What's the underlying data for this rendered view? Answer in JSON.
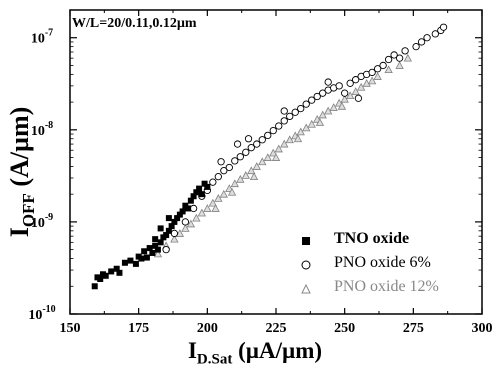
{
  "chart_data": {
    "type": "scatter",
    "title": "",
    "annotation": "W/L=20/0.11,0.12µm",
    "ylabel": {
      "main": "I",
      "sub": "OFF",
      "unit": " (A/µm)"
    },
    "xlabel": {
      "main": "I",
      "sub": "D.Sat",
      "unit": " (µA/µm)"
    },
    "xlim": [
      150,
      300
    ],
    "ylim": [
      1e-10,
      2e-07
    ],
    "yscale": "log",
    "xticks": [
      "150",
      "175",
      "200",
      "225",
      "250",
      "275",
      "300"
    ],
    "yticks": [
      {
        "base": "10",
        "exp": "-10",
        "value": 1e-10
      },
      {
        "base": "10",
        "exp": "-9",
        "value": 1e-09
      },
      {
        "base": "10",
        "exp": "-8",
        "value": 1e-08
      },
      {
        "base": "10",
        "exp": "-7",
        "value": 1e-07
      }
    ],
    "grid": false,
    "legend_position": "bottom-right",
    "series": [
      {
        "name": "TNO oxide",
        "marker": "filled-square",
        "color": "#000000",
        "points": [
          [
            159,
            2e-10
          ],
          [
            160,
            2.5e-10
          ],
          [
            161,
            2.4e-10
          ],
          [
            162,
            2.7e-10
          ],
          [
            163,
            2.6e-10
          ],
          [
            165,
            2.9e-10
          ],
          [
            167,
            3.1e-10
          ],
          [
            168,
            2.8e-10
          ],
          [
            170,
            3.6e-10
          ],
          [
            172,
            3.8e-10
          ],
          [
            174,
            3.5e-10
          ],
          [
            175,
            4.2e-10
          ],
          [
            176,
            4e-10
          ],
          [
            177,
            4.8e-10
          ],
          [
            178,
            4.1e-10
          ],
          [
            179,
            5.2e-10
          ],
          [
            180,
            4.6e-10
          ],
          [
            181,
            5.5e-10
          ],
          [
            182,
            5e-10
          ],
          [
            183,
            6e-10
          ],
          [
            184,
            6.8e-10
          ],
          [
            185,
            7.2e-10
          ],
          [
            186,
            8e-10
          ],
          [
            187,
            9e-10
          ],
          [
            188,
            1e-09
          ],
          [
            189,
            1.1e-09
          ],
          [
            190,
            1.2e-09
          ],
          [
            191,
            1.3e-09
          ],
          [
            192,
            1.5e-09
          ],
          [
            193,
            1.4e-09
          ],
          [
            194,
            1.7e-09
          ],
          [
            195,
            1.9e-09
          ],
          [
            196,
            2.1e-09
          ],
          [
            197,
            2.3e-09
          ],
          [
            198,
            2e-09
          ],
          [
            199,
            2.6e-09
          ],
          [
            200,
            2.4e-09
          ],
          [
            183,
            8.5e-10
          ],
          [
            186,
            1.1e-09
          ],
          [
            181,
            6.5e-10
          ]
        ]
      },
      {
        "name": "PNO oxide 6%",
        "marker": "open-circle",
        "color": "#000000",
        "points": [
          [
            185,
            5e-10
          ],
          [
            188,
            7.5e-10
          ],
          [
            192,
            1e-09
          ],
          [
            195,
            1.4e-09
          ],
          [
            198,
            1.9e-09
          ],
          [
            200,
            2.2e-09
          ],
          [
            202,
            2.7e-09
          ],
          [
            204,
            3.1e-09
          ],
          [
            206,
            3.6e-09
          ],
          [
            208,
            3.9e-09
          ],
          [
            210,
            4.6e-09
          ],
          [
            212,
            5.1e-09
          ],
          [
            214,
            5.7e-09
          ],
          [
            216,
            6.4e-09
          ],
          [
            218,
            7e-09
          ],
          [
            220,
            7.8e-09
          ],
          [
            222,
            8.7e-09
          ],
          [
            224,
            9.8e-09
          ],
          [
            226,
            1.1e-08
          ],
          [
            228,
            1.25e-08
          ],
          [
            230,
            1.4e-08
          ],
          [
            232,
            1.55e-08
          ],
          [
            234,
            1.7e-08
          ],
          [
            236,
            1.9e-08
          ],
          [
            238,
            2.1e-08
          ],
          [
            240,
            2.3e-08
          ],
          [
            242,
            2.5e-08
          ],
          [
            244,
            2.7e-08
          ],
          [
            246,
            2.85e-08
          ],
          [
            248,
            3e-08
          ],
          [
            250,
            2.5e-08
          ],
          [
            252,
            3.2e-08
          ],
          [
            254,
            3.5e-08
          ],
          [
            256,
            3.8e-08
          ],
          [
            258,
            4e-08
          ],
          [
            260,
            4.2e-08
          ],
          [
            262,
            4.6e-08
          ],
          [
            264,
            5e-08
          ],
          [
            266,
            5.8e-08
          ],
          [
            268,
            6.5e-08
          ],
          [
            270,
            6e-08
          ],
          [
            272,
            7.2e-08
          ],
          [
            276,
            8e-08
          ],
          [
            278,
            9e-08
          ],
          [
            280,
            1e-07
          ],
          [
            283,
            1.1e-07
          ],
          [
            285,
            1.2e-07
          ],
          [
            286,
            1.3e-07
          ],
          [
            211,
            7e-09
          ],
          [
            205,
            4.5e-09
          ],
          [
            215,
            8e-09
          ],
          [
            228,
            1.6e-08
          ],
          [
            244,
            3.3e-08
          ],
          [
            255,
            2.2e-08
          ]
        ]
      },
      {
        "name": "PNO oxide 12%",
        "marker": "open-triangle",
        "color": "#808080",
        "points": [
          [
            182,
            4.5e-10
          ],
          [
            185,
            5.5e-10
          ],
          [
            188,
            6.5e-10
          ],
          [
            190,
            7.5e-10
          ],
          [
            192,
            8.5e-10
          ],
          [
            194,
            9.5e-10
          ],
          [
            196,
            1.1e-09
          ],
          [
            198,
            1.25e-09
          ],
          [
            200,
            1.4e-09
          ],
          [
            202,
            1.6e-09
          ],
          [
            204,
            1.8e-09
          ],
          [
            206,
            2e-09
          ],
          [
            208,
            2.3e-09
          ],
          [
            210,
            2.6e-09
          ],
          [
            212,
            2.9e-09
          ],
          [
            214,
            3.2e-09
          ],
          [
            216,
            3.6e-09
          ],
          [
            218,
            4e-09
          ],
          [
            220,
            4.5e-09
          ],
          [
            222,
            5e-09
          ],
          [
            224,
            5.6e-09
          ],
          [
            226,
            6.2e-09
          ],
          [
            228,
            7e-09
          ],
          [
            230,
            7.8e-09
          ],
          [
            232,
            8.6e-09
          ],
          [
            234,
            9.5e-09
          ],
          [
            236,
            1.05e-08
          ],
          [
            238,
            1.15e-08
          ],
          [
            240,
            1.3e-08
          ],
          [
            242,
            1.45e-08
          ],
          [
            244,
            1.6e-08
          ],
          [
            246,
            1.75e-08
          ],
          [
            248,
            1.95e-08
          ],
          [
            250,
            2.15e-08
          ],
          [
            252,
            2.35e-08
          ],
          [
            254,
            2.6e-08
          ],
          [
            256,
            2.9e-08
          ],
          [
            258,
            3.2e-08
          ],
          [
            260,
            3.4e-08
          ],
          [
            262,
            3.8e-08
          ],
          [
            266,
            4.5e-08
          ],
          [
            270,
            5e-08
          ],
          [
            273,
            6e-08
          ],
          [
            203,
            1.4e-09
          ],
          [
            209,
            2.1e-09
          ],
          [
            217,
            3.1e-09
          ],
          [
            225,
            5e-09
          ],
          [
            233,
            8e-09
          ],
          [
            241,
            1.2e-08
          ],
          [
            249,
            1.8e-08
          ]
        ]
      }
    ]
  }
}
